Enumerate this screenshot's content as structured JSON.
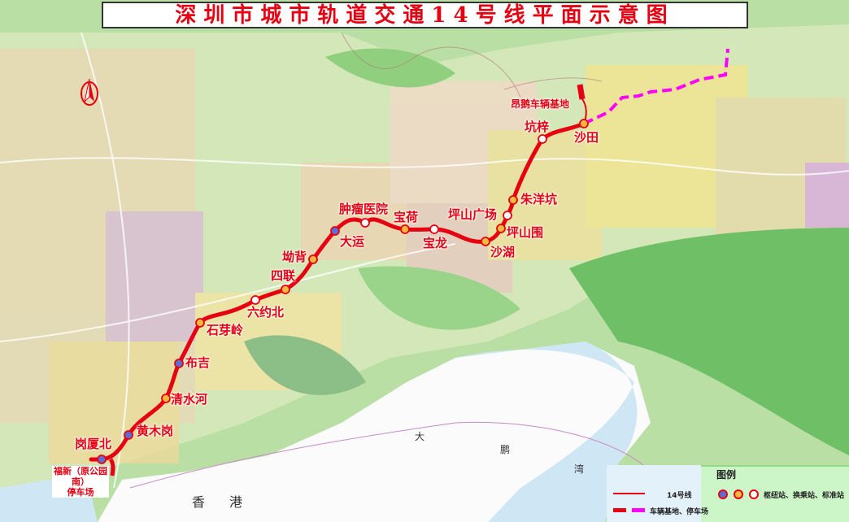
{
  "title": "深圳市城市轨道交通14号线平面示意图",
  "colors": {
    "line": "#e60012",
    "depot_dashed": "#ff00ff",
    "hub": "#5a6fd6",
    "transfer": "#f6b93b",
    "standard": "#ffffff"
  },
  "stations": [
    {
      "name": "岗厦北",
      "type": "hub"
    },
    {
      "name": "黄木岗",
      "type": "hub"
    },
    {
      "name": "清水河",
      "type": "transfer"
    },
    {
      "name": "布吉",
      "type": "hub"
    },
    {
      "name": "石芽岭",
      "type": "transfer"
    },
    {
      "name": "六约北",
      "type": "standard"
    },
    {
      "name": "四联",
      "type": "transfer"
    },
    {
      "name": "坳背",
      "type": "transfer"
    },
    {
      "name": "大运",
      "type": "hub"
    },
    {
      "name": "肿瘤医院",
      "type": "standard"
    },
    {
      "name": "宝荷",
      "type": "transfer"
    },
    {
      "name": "宝龙",
      "type": "standard"
    },
    {
      "name": "沙湖",
      "type": "transfer"
    },
    {
      "name": "坪山围",
      "type": "transfer"
    },
    {
      "name": "坪山广场",
      "type": "standard"
    },
    {
      "name": "朱洋坑",
      "type": "transfer"
    },
    {
      "name": "坑梓",
      "type": "standard"
    },
    {
      "name": "沙田",
      "type": "transfer"
    }
  ],
  "depots": {
    "north": "昂鹅车辆基地",
    "south_line1": "福新（原公园南）",
    "south_line2": "停车场"
  },
  "places": {
    "hongkong": "香港",
    "bay": [
      "大",
      "鹏",
      "湾"
    ]
  },
  "legend": {
    "heading": "图例",
    "line_label": "14号线",
    "depot_label": "车辆基地、停车场",
    "station_types_label": "枢纽站、换乘站、标准站"
  },
  "compass_icon": "north-arrow-icon"
}
